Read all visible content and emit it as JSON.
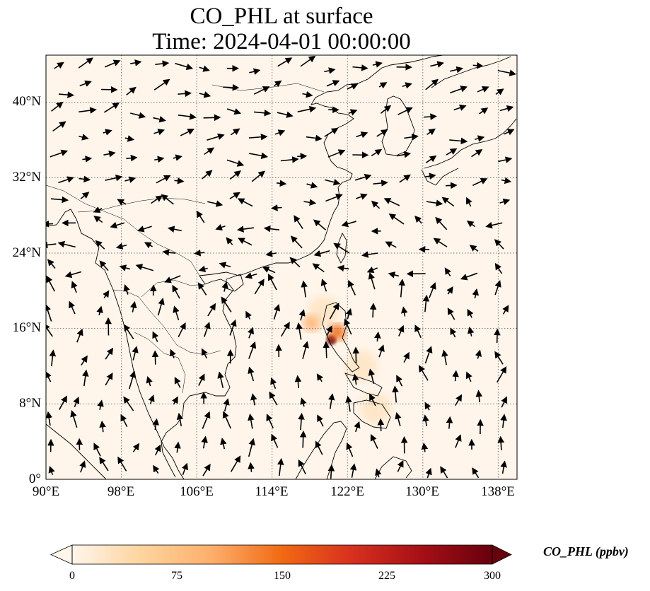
{
  "title": "CO_PHL at surface",
  "subtitle": "Time: 2024-04-01 00:00:00",
  "map": {
    "lon_range": [
      90,
      140
    ],
    "lat_range": [
      0,
      45
    ],
    "x_ticks": [
      "90°E",
      "98°E",
      "106°E",
      "114°E",
      "122°E",
      "130°E",
      "138°E"
    ],
    "y_ticks": [
      "0°",
      "8°N",
      "16°N",
      "24°N",
      "32°N",
      "40°N"
    ],
    "gridlines": true
  },
  "colorbar": {
    "label": "CO_PHL (ppbv)",
    "ticks": [
      "0",
      "75",
      "150",
      "225",
      "300"
    ],
    "range": [
      0,
      300
    ],
    "colors": [
      "#fff5eb",
      "#fdd49e",
      "#fdae6b",
      "#f16913",
      "#d7301f",
      "#a50f15",
      "#67000d"
    ]
  },
  "concentration_hotspots": [
    {
      "lon": 118.2,
      "lat": 16.6,
      "value": 110
    },
    {
      "lon": 120.3,
      "lat": 14.8,
      "value": 290
    },
    {
      "lon": 120.9,
      "lat": 15.6,
      "value": 140
    },
    {
      "lon": 119.5,
      "lat": 17.8,
      "value": 60
    },
    {
      "lon": 123.5,
      "lat": 12.0,
      "value": 40
    },
    {
      "lon": 125.0,
      "lat": 7.5,
      "value": 30
    }
  ]
}
